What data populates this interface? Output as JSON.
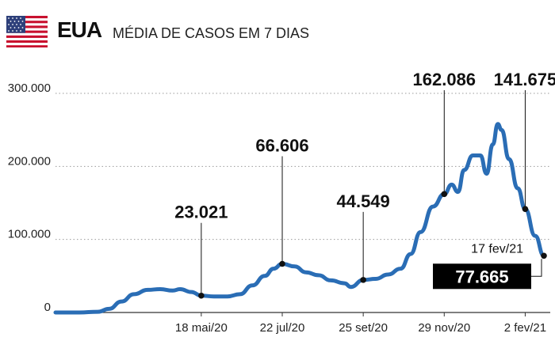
{
  "header": {
    "country": "EUA",
    "subtitle": "MÉDIA DE CASOS EM 7 DIAS",
    "flag_icon": "usa-flag-icon"
  },
  "colors": {
    "line": "#2a6db5",
    "grid": "#9a9a9a",
    "text": "#111111",
    "label_box": "#000000"
  },
  "chart_data": {
    "type": "line",
    "title": "MÉDIA DE CASOS EM 7 DIAS",
    "xlabel": "",
    "ylabel": "",
    "ylim": [
      0,
      300000
    ],
    "xlim": [
      "2020-01-22",
      "2021-02-17"
    ],
    "grid": "horizontal dotted",
    "y_ticks": [
      {
        "value": 0,
        "label": "0"
      },
      {
        "value": 100000,
        "label": "100.000"
      },
      {
        "value": 200000,
        "label": "200.000"
      },
      {
        "value": 300000,
        "label": "300.000"
      }
    ],
    "x_ticks": [
      {
        "date": "2020-05-18",
        "label": "18 mai/20"
      },
      {
        "date": "2020-07-22",
        "label": "22 jul/20"
      },
      {
        "date": "2020-09-25",
        "label": "25 set/20"
      },
      {
        "date": "2020-11-29",
        "label": "29 nov/20"
      },
      {
        "date": "2021-02-02",
        "label": "2 fev/21"
      }
    ],
    "series": [
      {
        "points": [
          [
            "2020-01-22",
            0
          ],
          [
            "2020-02-10",
            0
          ],
          [
            "2020-02-25",
            1000
          ],
          [
            "2020-03-05",
            5000
          ],
          [
            "2020-03-15",
            15000
          ],
          [
            "2020-03-25",
            25000
          ],
          [
            "2020-04-05",
            31000
          ],
          [
            "2020-04-15",
            32000
          ],
          [
            "2020-04-25",
            30000
          ],
          [
            "2020-05-01",
            32000
          ],
          [
            "2020-05-10",
            28000
          ],
          [
            "2020-05-18",
            23021
          ],
          [
            "2020-05-28",
            22000
          ],
          [
            "2020-06-08",
            22000
          ],
          [
            "2020-06-18",
            25000
          ],
          [
            "2020-06-28",
            37000
          ],
          [
            "2020-07-08",
            50000
          ],
          [
            "2020-07-15",
            60000
          ],
          [
            "2020-07-22",
            66606
          ],
          [
            "2020-08-01",
            63000
          ],
          [
            "2020-08-10",
            55000
          ],
          [
            "2020-08-20",
            51000
          ],
          [
            "2020-08-30",
            44000
          ],
          [
            "2020-09-10",
            40000
          ],
          [
            "2020-09-15",
            35000
          ],
          [
            "2020-09-25",
            44549
          ],
          [
            "2020-10-05",
            46000
          ],
          [
            "2020-10-15",
            52000
          ],
          [
            "2020-10-25",
            60000
          ],
          [
            "2020-11-02",
            80000
          ],
          [
            "2020-11-10",
            110000
          ],
          [
            "2020-11-20",
            145000
          ],
          [
            "2020-11-29",
            162086
          ],
          [
            "2020-12-05",
            175000
          ],
          [
            "2020-12-10",
            165000
          ],
          [
            "2020-12-15",
            195000
          ],
          [
            "2020-12-22",
            215000
          ],
          [
            "2020-12-28",
            215000
          ],
          [
            "2021-01-02",
            190000
          ],
          [
            "2021-01-07",
            230000
          ],
          [
            "2021-01-11",
            258000
          ],
          [
            "2021-01-14",
            250000
          ],
          [
            "2021-01-20",
            210000
          ],
          [
            "2021-01-27",
            170000
          ],
          [
            "2021-02-02",
            141675
          ],
          [
            "2021-02-10",
            105000
          ],
          [
            "2021-02-17",
            77665
          ]
        ]
      }
    ],
    "annotations": [
      {
        "date": "2020-05-18",
        "value": 23021,
        "label": "23.021"
      },
      {
        "date": "2020-07-22",
        "value": 66606,
        "label": "66.606"
      },
      {
        "date": "2020-09-25",
        "value": 44549,
        "label": "44.549"
      },
      {
        "date": "2020-11-29",
        "value": 162086,
        "label": "162.086"
      },
      {
        "date": "2021-02-02",
        "value": 141675,
        "label": "141.675"
      }
    ],
    "last_point": {
      "date": "2021-02-17",
      "date_label": "17 fev/21",
      "value": 77665,
      "label": "77.665"
    }
  }
}
